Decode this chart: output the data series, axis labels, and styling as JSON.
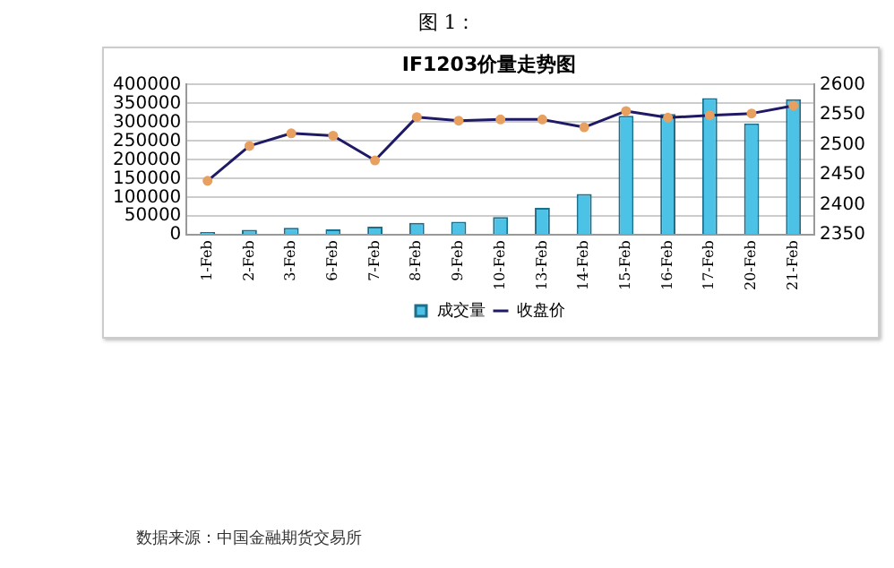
{
  "chart_data": {
    "type": "bar",
    "title": "IF1203价量走势图",
    "categories": [
      "1-Feb",
      "2-Feb",
      "3-Feb",
      "6-Feb",
      "7-Feb",
      "8-Feb",
      "9-Feb",
      "10-Feb",
      "13-Feb",
      "14-Feb",
      "15-Feb",
      "16-Feb",
      "17-Feb",
      "20-Feb",
      "21-Feb"
    ],
    "series": [
      {
        "name": "成交量",
        "color": "#4cc3e6",
        "values": [
          8000,
          14000,
          19000,
          15000,
          22000,
          32000,
          35000,
          48000,
          72000,
          109000,
          317000,
          322000,
          364000,
          297000,
          361000
        ]
      },
      {
        "name": "收盘价",
        "type": "line",
        "axis": "y2",
        "color": "#1f1a66",
        "marker": "circle",
        "values": [
          2440,
          2498,
          2519,
          2515,
          2474,
          2546,
          2540,
          2542,
          2542,
          2529,
          2556,
          2545,
          2549,
          2552,
          2565
        ]
      }
    ],
    "ylim": [
      0,
      400000
    ],
    "yticks": [
      0,
      50000,
      100000,
      150000,
      200000,
      250000,
      300000,
      350000,
      400000
    ],
    "y2lim": [
      2350,
      2600
    ],
    "y2ticks": [
      2350,
      2400,
      2450,
      2500,
      2550,
      2600
    ],
    "grid": "y",
    "legend": "bottom",
    "annotations": [
      "图 1：",
      "数据来源：中国金融期货交易所"
    ]
  }
}
